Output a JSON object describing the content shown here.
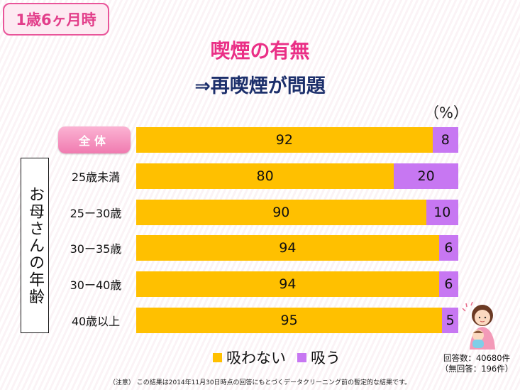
{
  "badge": "1歳6ヶ月時",
  "title": "喫煙の有無",
  "subtitle": "⇒再喫煙が問題",
  "unit": "（%）",
  "group_label": "お母さんの年齢",
  "colors": {
    "no_smoke": "#ffc000",
    "smoke": "#c777f2",
    "accent": "#ea2f86",
    "navy": "#1c2f6b"
  },
  "chart_data": {
    "type": "bar",
    "orientation": "horizontal",
    "stacked": true,
    "categories": [
      "全体",
      "25歳未満",
      "25ー30歳",
      "30ー35歳",
      "30ー40歳",
      "40歳以上"
    ],
    "series": [
      {
        "name": "吸わない",
        "values": [
          92,
          80,
          90,
          94,
          94,
          95
        ]
      },
      {
        "name": "吸う",
        "values": [
          8,
          20,
          10,
          6,
          6,
          5
        ]
      }
    ],
    "xlim": [
      0,
      100
    ],
    "legend_position": "bottom",
    "grid": false
  },
  "legend": {
    "no_smoke": "吸わない",
    "smoke": "吸う"
  },
  "count_lines": [
    "回答数：40680件",
    "（無回答：196件）"
  ],
  "note": "（注意） この結果は2014年11月30日時点の回答にもとづくデータクリーニング前の暫定的な結果です。",
  "illustration_icon": "mother-holding-baby-illustration"
}
